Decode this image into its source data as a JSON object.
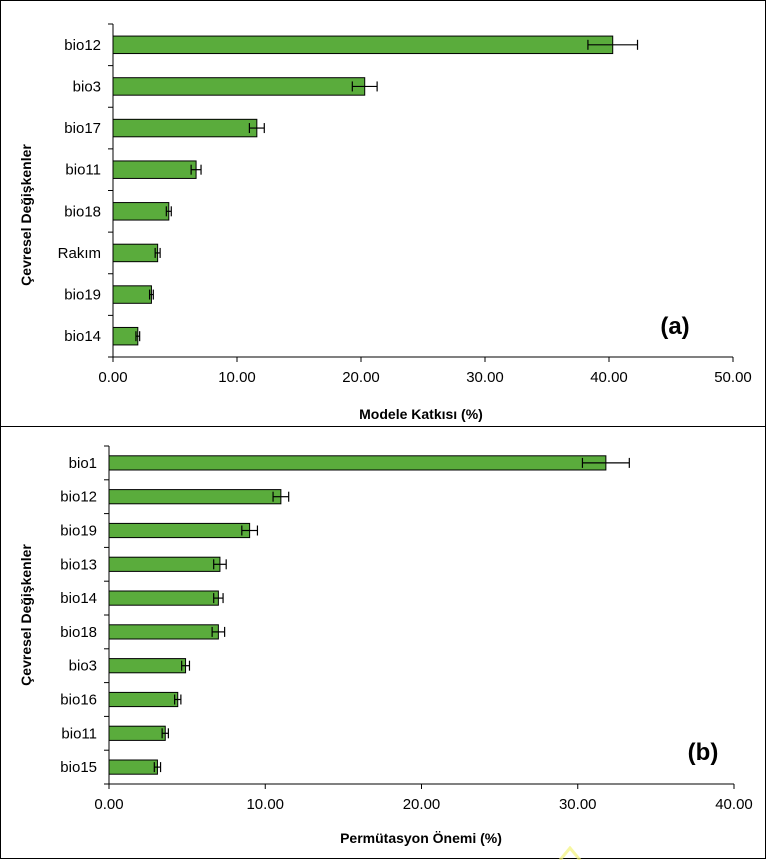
{
  "chart_data": [
    {
      "type": "bar",
      "orientation": "horizontal",
      "panel_label": "(a)",
      "categories": [
        "bio12",
        "bio3",
        "bio17",
        "bio11",
        "bio18",
        "Rakım",
        "bio19",
        "bio14"
      ],
      "values": [
        40.3,
        20.3,
        11.6,
        6.7,
        4.5,
        3.6,
        3.1,
        2.0
      ],
      "errors": [
        2.0,
        1.0,
        0.6,
        0.4,
        0.2,
        0.2,
        0.15,
        0.15
      ],
      "xlabel": "Modele Katkısı (%)",
      "ylabel": "Çevresel Değişkenler",
      "xlim": [
        0,
        50
      ],
      "xticks": [
        "0.00",
        "10.00",
        "20.00",
        "30.00",
        "40.00",
        "50.00"
      ],
      "bar_color": "#5aac3c",
      "grid": false
    },
    {
      "type": "bar",
      "orientation": "horizontal",
      "panel_label": "(b)",
      "categories": [
        "bio1",
        "bio12",
        "bio19",
        "bio13",
        "bio14",
        "bio18",
        "bio3",
        "bio16",
        "bio11",
        "bio15"
      ],
      "values": [
        31.8,
        11.0,
        9.0,
        7.1,
        7.0,
        7.0,
        4.9,
        4.4,
        3.6,
        3.1
      ],
      "errors": [
        1.5,
        0.5,
        0.5,
        0.4,
        0.3,
        0.4,
        0.25,
        0.2,
        0.2,
        0.2
      ],
      "xlabel": "Permütasyon Önemi (%)",
      "ylabel": "Çevresel Değişkenler",
      "xlim": [
        0,
        40
      ],
      "xticks": [
        "0.00",
        "10.00",
        "20.00",
        "30.00",
        "40.00"
      ],
      "bar_color": "#5aac3c",
      "grid": false
    }
  ]
}
